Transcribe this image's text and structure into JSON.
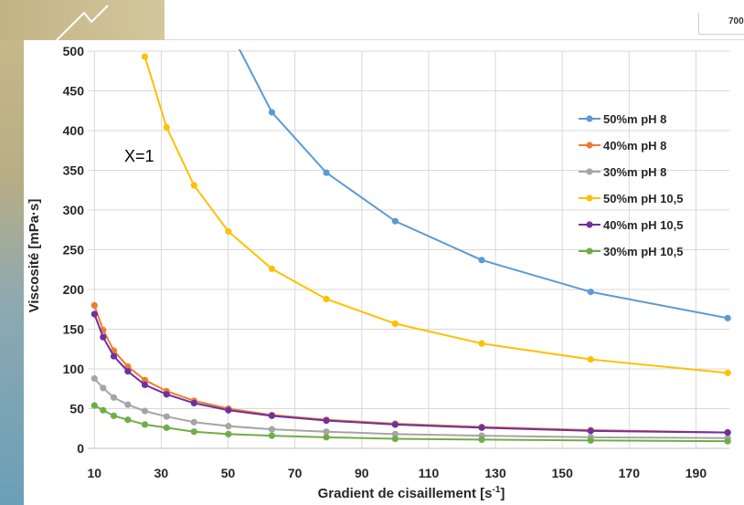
{
  "header": {
    "box_label": "700"
  },
  "chart_data": {
    "type": "line",
    "xlabel": "Gradient de cisaillement [s",
    "xlabel_sup": "-1",
    "xlabel_end": "]",
    "ylabel": "Viscosité [mPa·s]",
    "xlim": [
      8,
      200
    ],
    "ylim": [
      0,
      500
    ],
    "xticks": [
      10,
      30,
      50,
      70,
      90,
      110,
      130,
      150,
      170,
      190
    ],
    "yticks": [
      0,
      50,
      100,
      150,
      200,
      250,
      300,
      350,
      400,
      450,
      500
    ],
    "grid": true,
    "legend_position": "right",
    "annotation": "X=1",
    "series": [
      {
        "name": "50%m pH 8",
        "color": "#5b9bd5",
        "points": [
          [
            50,
            530
          ],
          [
            63.1,
            423
          ],
          [
            79.4,
            347
          ],
          [
            100,
            286
          ],
          [
            125.9,
            237
          ],
          [
            158.5,
            197
          ],
          [
            199.5,
            164
          ]
        ]
      },
      {
        "name": "40%m pH 8",
        "color": "#ed7d31",
        "points": [
          [
            10,
            180
          ],
          [
            12.6,
            149
          ],
          [
            15.8,
            123
          ],
          [
            20,
            103
          ],
          [
            25.1,
            86
          ],
          [
            31.6,
            72
          ],
          [
            39.8,
            60
          ],
          [
            50.1,
            50
          ],
          [
            63.1,
            42
          ],
          [
            79.4,
            36
          ],
          [
            100,
            31
          ],
          [
            125.9,
            27
          ],
          [
            158.5,
            23
          ],
          [
            199.5,
            20
          ]
        ]
      },
      {
        "name": "30%m pH 8",
        "color": "#a5a5a5",
        "points": [
          [
            10,
            88
          ],
          [
            12.6,
            76
          ],
          [
            15.8,
            64
          ],
          [
            20,
            55
          ],
          [
            25.1,
            47
          ],
          [
            31.6,
            40
          ],
          [
            39.8,
            33
          ],
          [
            50.1,
            28
          ],
          [
            63.1,
            24
          ],
          [
            79.4,
            21
          ],
          [
            100,
            18
          ],
          [
            125.9,
            16
          ],
          [
            158.5,
            14
          ],
          [
            199.5,
            13
          ]
        ]
      },
      {
        "name": "50%m pH 10,5",
        "color": "#ffc000",
        "points": [
          [
            25.1,
            493
          ],
          [
            31.6,
            404
          ],
          [
            39.8,
            331
          ],
          [
            50.1,
            273
          ],
          [
            63.1,
            226
          ],
          [
            79.4,
            188
          ],
          [
            100,
            157
          ],
          [
            125.9,
            132
          ],
          [
            158.5,
            112
          ],
          [
            199.5,
            95
          ]
        ]
      },
      {
        "name": "40%m pH 10,5",
        "color": "#7030a0",
        "points": [
          [
            10,
            169
          ],
          [
            12.6,
            140
          ],
          [
            15.8,
            116
          ],
          [
            20,
            97
          ],
          [
            25.1,
            80
          ],
          [
            31.6,
            68
          ],
          [
            39.8,
            57
          ],
          [
            50.1,
            48
          ],
          [
            63.1,
            41
          ],
          [
            79.4,
            35
          ],
          [
            100,
            30
          ],
          [
            125.9,
            26
          ],
          [
            158.5,
            22
          ],
          [
            199.5,
            20
          ]
        ]
      },
      {
        "name": "30%m pH 10,5",
        "color": "#70ad47",
        "points": [
          [
            10,
            54
          ],
          [
            12.6,
            48
          ],
          [
            15.8,
            41
          ],
          [
            20,
            36
          ],
          [
            25.1,
            30
          ],
          [
            31.6,
            26
          ],
          [
            39.8,
            21
          ],
          [
            50.1,
            18
          ],
          [
            63.1,
            16
          ],
          [
            79.4,
            14
          ],
          [
            100,
            12
          ],
          [
            125.9,
            11
          ],
          [
            158.5,
            10
          ],
          [
            199.5,
            9
          ]
        ]
      }
    ]
  }
}
